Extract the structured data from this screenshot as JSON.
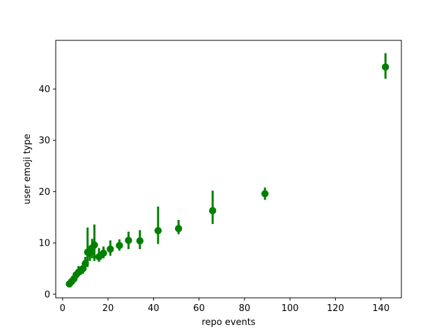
{
  "chart_data": {
    "type": "scatter",
    "title": "",
    "xlabel": "repo events",
    "ylabel": "user emoji type",
    "xlim": [
      -3,
      149
    ],
    "ylim": [
      -0.7,
      49.5
    ],
    "xticks": [
      0,
      20,
      40,
      60,
      80,
      100,
      120,
      140
    ],
    "yticks": [
      0,
      10,
      20,
      30,
      40
    ],
    "grid": false,
    "color": "#008000",
    "series": [
      {
        "points": [
          {
            "x": 3,
            "y": 2.0,
            "lo": 1.7,
            "hi": 2.3
          },
          {
            "x": 4,
            "y": 2.5,
            "lo": 2.2,
            "hi": 2.8
          },
          {
            "x": 5,
            "y": 3.0,
            "lo": 2.6,
            "hi": 3.4
          },
          {
            "x": 6,
            "y": 3.8,
            "lo": 3.2,
            "hi": 4.4
          },
          {
            "x": 7,
            "y": 4.3,
            "lo": 3.5,
            "hi": 5.5
          },
          {
            "x": 8,
            "y": 4.6,
            "lo": 3.8,
            "hi": 5.4
          },
          {
            "x": 9,
            "y": 5.0,
            "lo": 4.0,
            "hi": 6.0
          },
          {
            "x": 10,
            "y": 6.0,
            "lo": 5.0,
            "hi": 7.3
          },
          {
            "x": 11,
            "y": 8.2,
            "lo": 5.3,
            "hi": 13.0
          },
          {
            "x": 12,
            "y": 8.0,
            "lo": 6.5,
            "hi": 9.5
          },
          {
            "x": 13,
            "y": 9.0,
            "lo": 7.0,
            "hi": 10.8
          },
          {
            "x": 14,
            "y": 9.6,
            "lo": 6.5,
            "hi": 13.6
          },
          {
            "x": 16,
            "y": 7.3,
            "lo": 6.3,
            "hi": 9.0
          },
          {
            "x": 18,
            "y": 8.0,
            "lo": 7.0,
            "hi": 9.3
          },
          {
            "x": 21,
            "y": 8.8,
            "lo": 7.5,
            "hi": 10.5
          },
          {
            "x": 25,
            "y": 9.5,
            "lo": 8.5,
            "hi": 10.7
          },
          {
            "x": 29,
            "y": 10.5,
            "lo": 8.8,
            "hi": 12.2
          },
          {
            "x": 34,
            "y": 10.4,
            "lo": 8.8,
            "hi": 12.5
          },
          {
            "x": 42,
            "y": 12.4,
            "lo": 9.8,
            "hi": 17.1
          },
          {
            "x": 51,
            "y": 12.8,
            "lo": 11.7,
            "hi": 14.5
          },
          {
            "x": 66,
            "y": 16.3,
            "lo": 13.7,
            "hi": 20.2
          },
          {
            "x": 89,
            "y": 19.6,
            "lo": 18.4,
            "hi": 20.8
          },
          {
            "x": 142,
            "y": 44.3,
            "lo": 42.0,
            "hi": 47.0
          }
        ]
      }
    ]
  }
}
